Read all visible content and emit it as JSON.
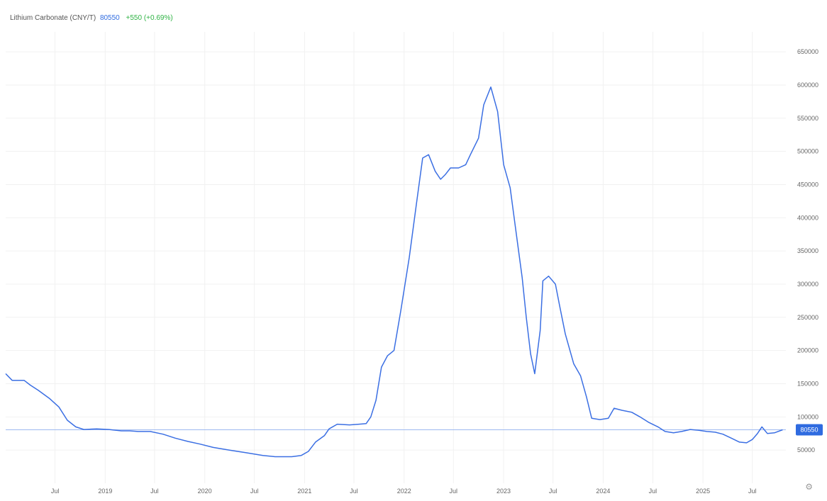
{
  "header": {
    "title": "Lithium Carbonate (CNY/T)",
    "price": "80550",
    "change": "+550 (+0.69%)"
  },
  "colors": {
    "line": "#3b6fe3",
    "last_price_badge": "#2f6be0",
    "change_positive": "#2fb344",
    "grid": "#f1f1f1"
  },
  "settings_icon": "gear-icon",
  "chart_data": {
    "type": "line",
    "title": "Lithium Carbonate (CNY/T)",
    "xlabel": "",
    "ylabel": "",
    "ylim": [
      0,
      680000
    ],
    "xlim": [
      "2018-01-01",
      "2025-11-01"
    ],
    "y_ticks": [
      50000,
      100000,
      150000,
      200000,
      250000,
      300000,
      350000,
      400000,
      450000,
      500000,
      550000,
      600000,
      650000
    ],
    "x_ticks": [
      {
        "date": "2018-07-01",
        "label": "Jul"
      },
      {
        "date": "2019-01-01",
        "label": "2019"
      },
      {
        "date": "2019-07-01",
        "label": "Jul"
      },
      {
        "date": "2020-01-01",
        "label": "2020"
      },
      {
        "date": "2020-07-01",
        "label": "Jul"
      },
      {
        "date": "2021-01-01",
        "label": "2021"
      },
      {
        "date": "2021-07-01",
        "label": "Jul"
      },
      {
        "date": "2022-01-01",
        "label": "2022"
      },
      {
        "date": "2022-07-01",
        "label": "Jul"
      },
      {
        "date": "2023-01-01",
        "label": "2023"
      },
      {
        "date": "2023-07-01",
        "label": "Jul"
      },
      {
        "date": "2024-01-01",
        "label": "2024"
      },
      {
        "date": "2024-07-01",
        "label": "Jul"
      },
      {
        "date": "2025-01-01",
        "label": "2025"
      },
      {
        "date": "2025-07-01",
        "label": "Jul"
      }
    ],
    "last_value": 80550,
    "last_value_label": "80550",
    "grid": true,
    "series": [
      {
        "points": [
          [
            "2018-01-01",
            165000
          ],
          [
            "2018-01-25",
            155000
          ],
          [
            "2018-03-10",
            155000
          ],
          [
            "2018-04-01",
            148000
          ],
          [
            "2018-05-01",
            140000
          ],
          [
            "2018-06-10",
            128000
          ],
          [
            "2018-07-15",
            115000
          ],
          [
            "2018-08-15",
            95000
          ],
          [
            "2018-09-15",
            85000
          ],
          [
            "2018-10-15",
            81000
          ],
          [
            "2018-12-01",
            82000
          ],
          [
            "2019-01-15",
            81000
          ],
          [
            "2019-03-01",
            79000
          ],
          [
            "2019-04-01",
            79000
          ],
          [
            "2019-05-01",
            78000
          ],
          [
            "2019-06-15",
            78000
          ],
          [
            "2019-08-01",
            74000
          ],
          [
            "2019-09-15",
            68000
          ],
          [
            "2019-11-01",
            63000
          ],
          [
            "2019-12-15",
            59000
          ],
          [
            "2020-02-01",
            54000
          ],
          [
            "2020-04-01",
            50000
          ],
          [
            "2020-06-01",
            46000
          ],
          [
            "2020-08-01",
            42000
          ],
          [
            "2020-09-15",
            40000
          ],
          [
            "2020-11-15",
            40000
          ],
          [
            "2020-12-20",
            42000
          ],
          [
            "2021-01-15",
            48000
          ],
          [
            "2021-02-10",
            62000
          ],
          [
            "2021-03-15",
            72000
          ],
          [
            "2021-04-01",
            82000
          ],
          [
            "2021-05-01",
            89000
          ],
          [
            "2021-06-15",
            88000
          ],
          [
            "2021-07-20",
            89000
          ],
          [
            "2021-08-15",
            90000
          ],
          [
            "2021-09-01",
            100000
          ],
          [
            "2021-09-20",
            125000
          ],
          [
            "2021-10-10",
            175000
          ],
          [
            "2021-11-01",
            192000
          ],
          [
            "2021-11-25",
            200000
          ],
          [
            "2021-12-20",
            260000
          ],
          [
            "2022-01-20",
            340000
          ],
          [
            "2022-02-15",
            420000
          ],
          [
            "2022-03-10",
            490000
          ],
          [
            "2022-04-01",
            495000
          ],
          [
            "2022-04-25",
            470000
          ],
          [
            "2022-05-15",
            458000
          ],
          [
            "2022-06-01",
            465000
          ],
          [
            "2022-06-20",
            475000
          ],
          [
            "2022-07-20",
            475000
          ],
          [
            "2022-08-15",
            480000
          ],
          [
            "2022-09-01",
            495000
          ],
          [
            "2022-10-01",
            520000
          ],
          [
            "2022-10-20",
            570000
          ],
          [
            "2022-11-15",
            597000
          ],
          [
            "2022-12-10",
            560000
          ],
          [
            "2023-01-01",
            480000
          ],
          [
            "2023-01-25",
            445000
          ],
          [
            "2023-02-15",
            380000
          ],
          [
            "2023-03-10",
            310000
          ],
          [
            "2023-03-25",
            250000
          ],
          [
            "2023-04-10",
            195000
          ],
          [
            "2023-04-25",
            165000
          ],
          [
            "2023-05-15",
            230000
          ],
          [
            "2023-05-25",
            305000
          ],
          [
            "2023-06-15",
            312000
          ],
          [
            "2023-07-10",
            300000
          ],
          [
            "2023-07-25",
            268000
          ],
          [
            "2023-08-15",
            225000
          ],
          [
            "2023-09-15",
            180000
          ],
          [
            "2023-10-10",
            162000
          ],
          [
            "2023-11-01",
            130000
          ],
          [
            "2023-11-20",
            98000
          ],
          [
            "2023-12-20",
            96000
          ],
          [
            "2024-01-20",
            98000
          ],
          [
            "2024-02-10",
            113000
          ],
          [
            "2024-03-10",
            110000
          ],
          [
            "2024-04-15",
            107000
          ],
          [
            "2024-05-15",
            100000
          ],
          [
            "2024-06-15",
            92000
          ],
          [
            "2024-07-20",
            85000
          ],
          [
            "2024-08-15",
            78000
          ],
          [
            "2024-09-15",
            76000
          ],
          [
            "2024-10-15",
            78000
          ],
          [
            "2024-11-15",
            81000
          ],
          [
            "2024-12-15",
            80000
          ],
          [
            "2025-01-15",
            78000
          ],
          [
            "2025-02-15",
            77000
          ],
          [
            "2025-03-15",
            74000
          ],
          [
            "2025-04-15",
            68000
          ],
          [
            "2025-05-15",
            62000
          ],
          [
            "2025-06-10",
            61000
          ],
          [
            "2025-07-01",
            66000
          ],
          [
            "2025-07-20",
            75000
          ],
          [
            "2025-08-05",
            85000
          ],
          [
            "2025-08-25",
            75000
          ],
          [
            "2025-09-20",
            76000
          ],
          [
            "2025-10-20",
            80550
          ]
        ]
      }
    ]
  }
}
